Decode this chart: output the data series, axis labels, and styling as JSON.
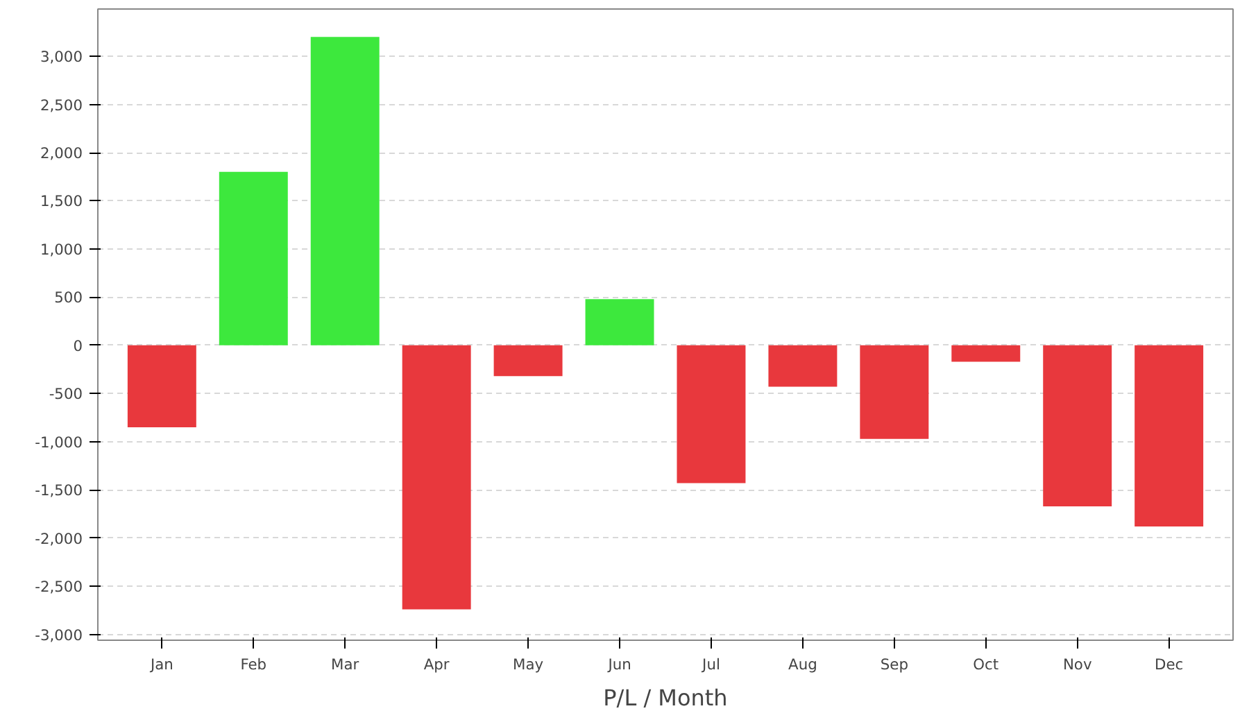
{
  "chart_data": {
    "type": "bar",
    "xlabel": "P/L / Month",
    "categories": [
      "Jan",
      "Feb",
      "Mar",
      "Apr",
      "May",
      "Jun",
      "Jul",
      "Aug",
      "Sep",
      "Oct",
      "Nov",
      "Dec"
    ],
    "values": [
      -850,
      1800,
      3200,
      -2740,
      -320,
      480,
      -1430,
      -430,
      -970,
      -170,
      -1670,
      -1880
    ],
    "colors": [
      "#e8383d",
      "#3de83d",
      "#3de83d",
      "#e8383d",
      "#e8383d",
      "#3de83d",
      "#e8383d",
      "#e8383d",
      "#e8383d",
      "#e8383d",
      "#e8383d",
      "#e8383d"
    ],
    "ylim": [
      -3060,
      3490
    ],
    "yticks": [
      {
        "value": -3000,
        "label": "-3,000"
      },
      {
        "value": -2500,
        "label": "-2,500"
      },
      {
        "value": -2000,
        "label": "-2,000"
      },
      {
        "value": -1500,
        "label": "-1,500"
      },
      {
        "value": -1000,
        "label": "-1,000"
      },
      {
        "value": -500,
        "label": "-500"
      },
      0,
      500,
      {
        "value": 1000,
        "label": "1,000"
      },
      {
        "value": 1500,
        "label": "1,500"
      },
      {
        "value": 2000,
        "label": "2,000"
      },
      {
        "value": 2500,
        "label": "2,500"
      },
      {
        "value": 3000,
        "label": "3,000"
      }
    ],
    "grid": "y"
  }
}
